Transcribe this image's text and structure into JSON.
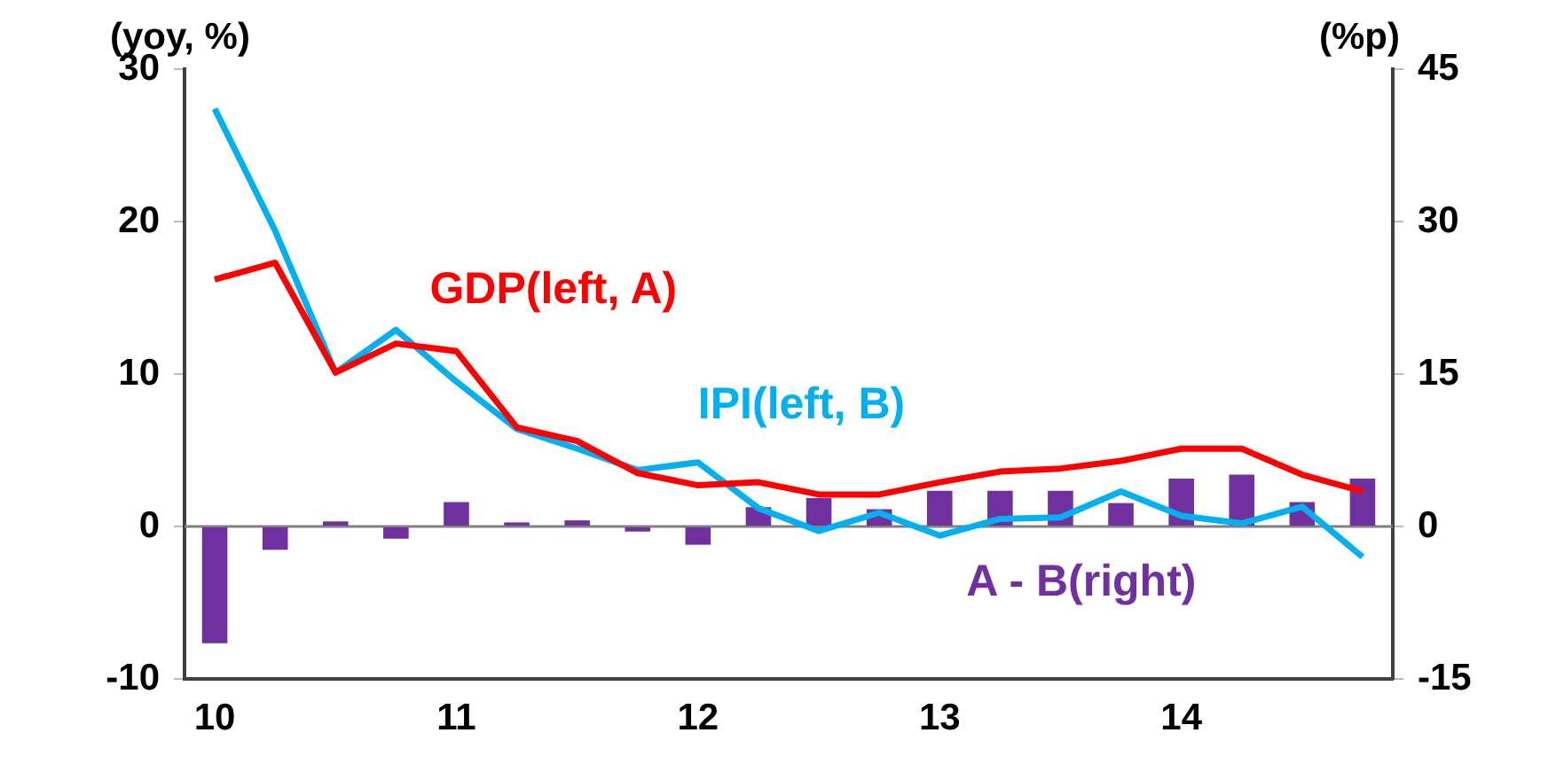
{
  "chart_data": {
    "type": "line",
    "ylabel": "(yoy, %)",
    "y2label": "(%p)",
    "categories": [
      "10",
      null,
      null,
      null,
      "11",
      null,
      null,
      null,
      "12",
      null,
      null,
      null,
      "13",
      null,
      null,
      null,
      "14",
      null,
      null,
      null
    ],
    "series": [
      {
        "name": "A - B(right)",
        "type": "bar",
        "axis": "y2",
        "color": "#7030a0",
        "values": [
          -11.5,
          -2.3,
          0.5,
          -1.2,
          2.4,
          0.4,
          0.6,
          -0.5,
          -1.8,
          1.9,
          2.8,
          1.7,
          3.5,
          3.5,
          3.5,
          2.3,
          4.7,
          5.1,
          2.4,
          4.7
        ]
      },
      {
        "name": "GDP(left, A)",
        "color": "#ff0000",
        "values": [
          16.2,
          17.3,
          10.1,
          12.0,
          11.5,
          6.5,
          5.6,
          3.5,
          2.7,
          2.9,
          2.1,
          2.1,
          2.9,
          3.6,
          3.8,
          4.3,
          5.1,
          5.1,
          3.4,
          2.3
        ]
      },
      {
        "name": "IPI(left, B)",
        "color": "#00b0f0",
        "values": [
          27.4,
          19.4,
          10.1,
          12.9,
          9.5,
          6.4,
          5.1,
          3.7,
          4.2,
          1.2,
          -0.3,
          0.9,
          -0.6,
          0.5,
          0.6,
          2.3,
          0.7,
          0.2,
          1.3,
          -2.0
        ]
      }
    ],
    "ylim": [
      -10,
      30
    ],
    "yticks": [
      -10,
      0,
      10,
      20,
      30
    ],
    "y2lim": [
      -15,
      45
    ],
    "y2ticks": [
      -15,
      0,
      15,
      30,
      45
    ],
    "ref_lines": [
      {
        "axis": "y",
        "value": 0,
        "color": "#808080"
      }
    ],
    "grid": false,
    "legend": false
  }
}
